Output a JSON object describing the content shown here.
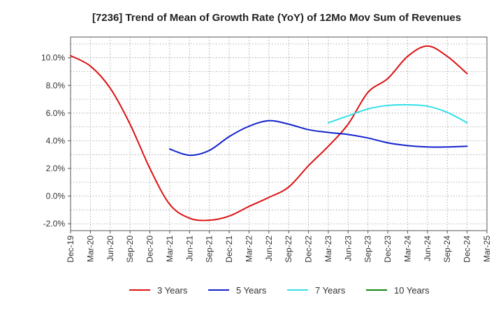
{
  "chart_data": {
    "type": "line",
    "title": "[7236]  Trend of Mean of Growth Rate (YoY) of 12Mo Mov Sum of Revenues",
    "xlabel": "",
    "ylabel": "",
    "ylim": [
      -2.5,
      11.5
    ],
    "yticks": [
      -2.0,
      0.0,
      2.0,
      4.0,
      6.0,
      8.0,
      10.0
    ],
    "ytick_labels": [
      "-2.0%",
      "0.0%",
      "2.0%",
      "4.0%",
      "6.0%",
      "8.0%",
      "10.0%"
    ],
    "categories": [
      "Dec-19",
      "Mar-20",
      "Jun-20",
      "Sep-20",
      "Dec-20",
      "Mar-21",
      "Jun-21",
      "Sep-21",
      "Dec-21",
      "Mar-22",
      "Jun-22",
      "Sep-22",
      "Dec-22",
      "Mar-23",
      "Jun-23",
      "Sep-23",
      "Dec-23",
      "Mar-24",
      "Jun-24",
      "Sep-24",
      "Dec-24",
      "Mar-25"
    ],
    "grid": true,
    "legend_position": "bottom",
    "series": [
      {
        "name": "3 Years",
        "color": "#dd1111",
        "values": [
          10.15,
          9.4,
          7.8,
          5.2,
          2.0,
          -0.6,
          -1.6,
          -1.75,
          -1.45,
          -0.75,
          -0.1,
          0.65,
          2.2,
          3.6,
          5.2,
          7.5,
          8.5,
          10.1,
          10.85,
          10.1,
          8.85,
          null
        ]
      },
      {
        "name": "5 Years",
        "color": "#1122cc",
        "values": [
          null,
          null,
          null,
          null,
          null,
          3.4,
          2.95,
          3.3,
          4.3,
          5.05,
          5.45,
          5.2,
          4.8,
          4.6,
          4.45,
          4.2,
          3.85,
          3.65,
          3.55,
          3.55,
          3.6,
          null
        ]
      },
      {
        "name": "7 Years",
        "color": "#33e0e8",
        "values": [
          null,
          null,
          null,
          null,
          null,
          null,
          null,
          null,
          null,
          null,
          null,
          null,
          null,
          5.3,
          5.8,
          6.3,
          6.55,
          6.6,
          6.5,
          6.05,
          5.3,
          null
        ]
      },
      {
        "name": "10 Years",
        "color": "#118811",
        "values": [
          null,
          null,
          null,
          null,
          null,
          null,
          null,
          null,
          null,
          null,
          null,
          null,
          null,
          null,
          null,
          null,
          null,
          null,
          null,
          null,
          null,
          null
        ]
      }
    ]
  }
}
